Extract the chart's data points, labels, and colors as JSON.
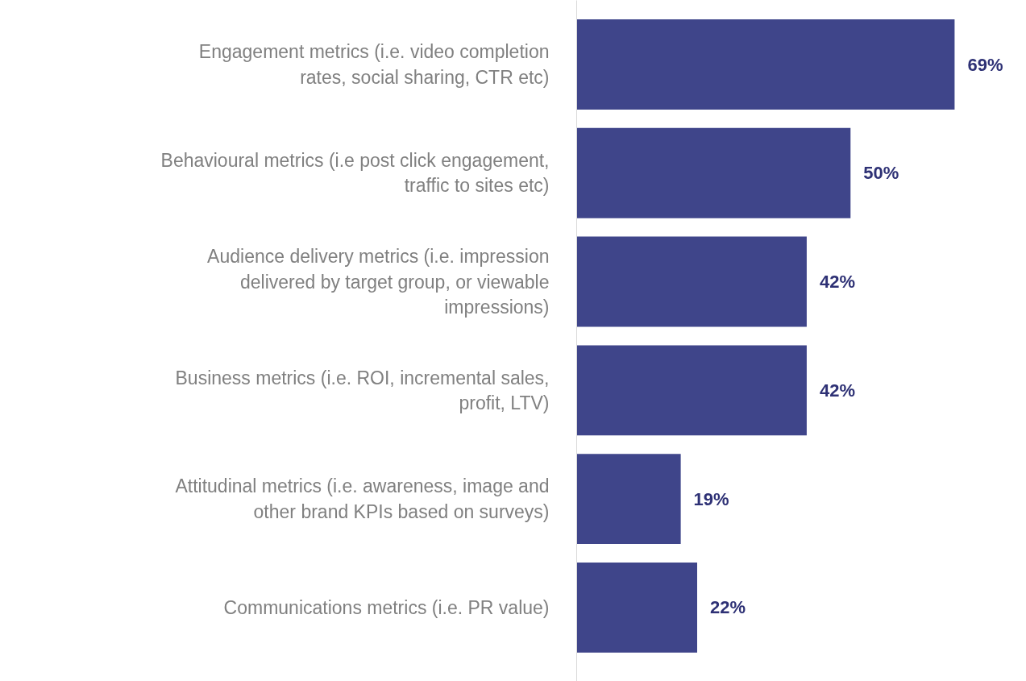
{
  "chart_data": {
    "type": "bar",
    "orientation": "horizontal",
    "categories": [
      "Engagement metrics (i.e. video completion rates, social sharing, CTR etc)",
      "Behavioural metrics (i.e post click engagement, traffic to sites etc)",
      "Audience delivery metrics (i.e. impression delivered by target group, or viewable impressions)",
      "Business metrics (i.e. ROI, incremental sales, profit, LTV)",
      "Attitudinal metrics (i.e. awareness, image and other brand KPIs based on surveys)",
      "Communications metrics (i.e. PR value)"
    ],
    "values": [
      69,
      50,
      42,
      42,
      19,
      22
    ],
    "value_labels": [
      "69%",
      "50%",
      "42%",
      "42%",
      "19%",
      "22%"
    ],
    "color": "#3f458a",
    "grid": false
  }
}
